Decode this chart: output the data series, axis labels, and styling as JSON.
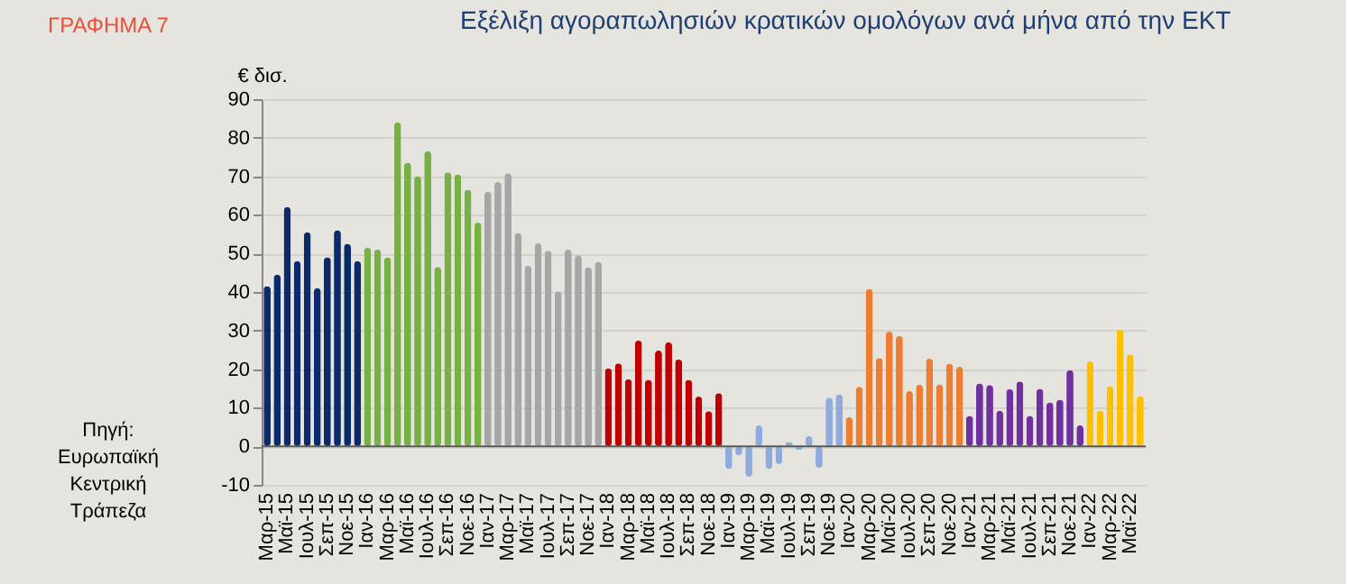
{
  "chart_data": {
    "type": "bar",
    "title": "Εξέλιξη αγοραπωλησιών κρατικών ομολόγων ανά μήνα από την ΕΚΤ",
    "ylabel": "€ δισ.",
    "categories": [
      "Μαρ-15",
      null,
      "Μαϊ-15",
      null,
      "Ιουλ-15",
      null,
      "Σεπ-15",
      null,
      "Νοε-15",
      null,
      "Ιαν-16",
      null,
      "Μαρ-16",
      null,
      "Μαϊ-16",
      null,
      "Ιουλ-16",
      null,
      "Σεπ-16",
      null,
      "Νοε-16",
      null,
      "Ιαν-17",
      null,
      "Μαρ-17",
      null,
      "Μαϊ-17",
      null,
      "Ιουλ-17",
      null,
      "Σεπ-17",
      null,
      "Νοε-17",
      null,
      "Ιαν-18",
      null,
      "Μαρ-18",
      null,
      "Μαϊ-18",
      null,
      "Ιουλ-18",
      null,
      "Σεπ-18",
      null,
      "Νοε-18",
      null,
      "Ιαν-19",
      null,
      "Μαρ-19",
      null,
      "Μαϊ-19",
      null,
      "Ιουλ-19",
      null,
      "Σεπ-19",
      null,
      "Νοε-19",
      null,
      "Ιαν-20",
      null,
      "Μαρ-20",
      null,
      "Μαϊ-20",
      null,
      "Ιουλ-20",
      null,
      "Σεπ-20",
      null,
      "Νοε-20",
      null,
      "Ιαν-21",
      null,
      "Μαρ-21",
      null,
      "Μαϊ-21",
      null,
      "Ιουλ-21",
      null,
      "Σεπ-21",
      null,
      "Νοε-21",
      null,
      "Ιαν-22",
      null,
      "Μαρ-22",
      null,
      "Μαϊ-22",
      null
    ],
    "values": [
      41.5,
      44.5,
      62,
      48,
      55.5,
      41,
      49,
      56,
      52.5,
      48,
      51.5,
      51,
      49,
      84,
      73.5,
      70,
      76.5,
      46.5,
      71,
      70.5,
      66.5,
      58,
      66,
      68.5,
      70.8,
      55.3,
      46.8,
      52.6,
      50.7,
      40.2,
      51,
      49.5,
      46.4,
      47.8,
      20.2,
      21.5,
      17.4,
      27.4,
      17.2,
      24.8,
      27,
      22.5,
      17.2,
      12.9,
      9.1,
      13.8,
      -5.9,
      -2.3,
      -7.9,
      5.4,
      -5.9,
      -4.6,
      1.1,
      -0.9,
      2.6,
      -5.6,
      12.6,
      13.5,
      7.5,
      15.4,
      40.8,
      22.9,
      29.7,
      28.6,
      14.3,
      16,
      22.7,
      16,
      21.4,
      20.6,
      7.9,
      16.3,
      15.9,
      9.2,
      14.8,
      16.8,
      7.9,
      14.9,
      11.4,
      12.1,
      19.7,
      5.4,
      22,
      9.2,
      15.6,
      30.2,
      23.8,
      13
    ],
    "colors": [
      "#0b2a6b",
      "#0b2a6b",
      "#0b2a6b",
      "#0b2a6b",
      "#0b2a6b",
      "#0b2a6b",
      "#0b2a6b",
      "#0b2a6b",
      "#0b2a6b",
      "#0b2a6b",
      "#77b144",
      "#77b144",
      "#77b144",
      "#77b144",
      "#77b144",
      "#77b144",
      "#77b144",
      "#77b144",
      "#77b144",
      "#77b144",
      "#77b144",
      "#77b144",
      "#a6a6a6",
      "#a6a6a6",
      "#a6a6a6",
      "#a6a6a6",
      "#a6a6a6",
      "#a6a6a6",
      "#a6a6a6",
      "#a6a6a6",
      "#a6a6a6",
      "#a6a6a6",
      "#a6a6a6",
      "#a6a6a6",
      "#c00000",
      "#c00000",
      "#c00000",
      "#c00000",
      "#c00000",
      "#c00000",
      "#c00000",
      "#c00000",
      "#c00000",
      "#c00000",
      "#c00000",
      "#c00000",
      "#8faadc",
      "#8faadc",
      "#8faadc",
      "#8faadc",
      "#8faadc",
      "#8faadc",
      "#8faadc",
      "#8faadc",
      "#8faadc",
      "#8faadc",
      "#8faadc",
      "#8faadc",
      "#ed7d31",
      "#ed7d31",
      "#ed7d31",
      "#ed7d31",
      "#ed7d31",
      "#ed7d31",
      "#ed7d31",
      "#ed7d31",
      "#ed7d31",
      "#ed7d31",
      "#ed7d31",
      "#ed7d31",
      "#7030a0",
      "#7030a0",
      "#7030a0",
      "#7030a0",
      "#7030a0",
      "#7030a0",
      "#7030a0",
      "#7030a0",
      "#7030a0",
      "#7030a0",
      "#7030a0",
      "#7030a0",
      "#ffc000",
      "#ffc000",
      "#ffc000",
      "#ffc000",
      "#ffc000",
      "#ffc000"
    ],
    "ylim": [
      -10,
      90
    ],
    "yticks": [
      -10,
      0,
      10,
      20,
      30,
      40,
      50,
      60,
      70,
      80,
      90
    ],
    "grid": "y",
    "ref_lines": [
      {
        "axis": "y",
        "value": 0,
        "color": "#595959"
      }
    ],
    "annotations": [
      "ΓΡΑΦΗΜΑ 7",
      "Πηγή: Ευρωπαϊκή Κεντρική Τράπεζα"
    ]
  }
}
